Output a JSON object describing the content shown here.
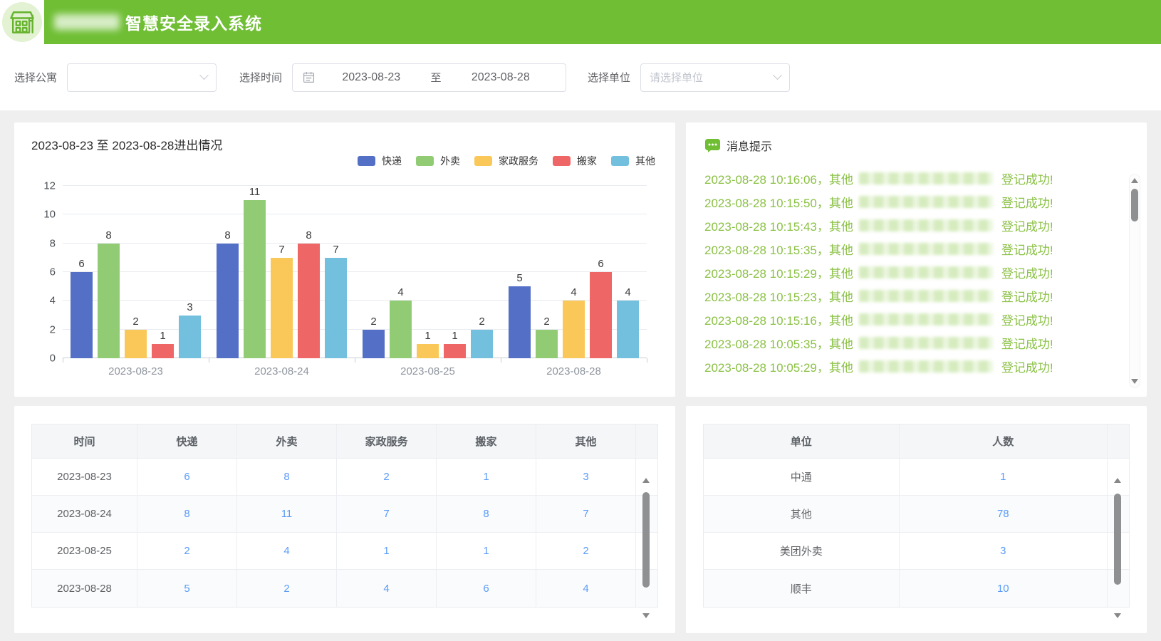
{
  "header": {
    "title": "智慧安全录入系统"
  },
  "filters": {
    "apartment_label": "选择公寓",
    "apartment_value": "",
    "time_label": "选择时间",
    "date_start": "2023-08-23",
    "date_separator": "至",
    "date_end": "2023-08-28",
    "unit_label": "选择单位",
    "unit_placeholder": "请选择单位"
  },
  "chart_data": {
    "type": "bar",
    "title": "2023-08-23 至 2023-08-28进出情况",
    "categories": [
      "2023-08-23",
      "2023-08-24",
      "2023-08-25",
      "2023-08-28"
    ],
    "series": [
      {
        "name": "快递",
        "color": "#5470c6",
        "values": [
          6,
          8,
          2,
          5
        ]
      },
      {
        "name": "外卖",
        "color": "#91cc75",
        "values": [
          8,
          11,
          4,
          2
        ]
      },
      {
        "name": "家政服务",
        "color": "#fac858",
        "values": [
          2,
          7,
          1,
          4
        ]
      },
      {
        "name": "搬家",
        "color": "#ee6666",
        "values": [
          1,
          8,
          1,
          6
        ]
      },
      {
        "name": "其他",
        "color": "#73c0de",
        "values": [
          3,
          7,
          2,
          4
        ]
      }
    ],
    "ylim": [
      0,
      12
    ],
    "yticks": [
      0,
      2,
      4,
      6,
      8,
      10,
      12
    ],
    "xlabel": "",
    "ylabel": "",
    "grid": true,
    "legend_position": "top-right"
  },
  "messages": {
    "title": "消息提示",
    "items": [
      {
        "time": "2023-08-28 10:16:06",
        "type": "其他",
        "status": "登记成功!"
      },
      {
        "time": "2023-08-28 10:15:50",
        "type": "其他",
        "status": "登记成功!"
      },
      {
        "time": "2023-08-28 10:15:43",
        "type": "其他",
        "status": "登记成功!"
      },
      {
        "time": "2023-08-28 10:15:35",
        "type": "其他",
        "status": "登记成功!"
      },
      {
        "time": "2023-08-28 10:15:29",
        "type": "其他",
        "status": "登记成功!"
      },
      {
        "time": "2023-08-28 10:15:23",
        "type": "其他",
        "status": "登记成功!"
      },
      {
        "time": "2023-08-28 10:15:16",
        "type": "其他",
        "status": "登记成功!"
      },
      {
        "time": "2023-08-28 10:05:35",
        "type": "其他",
        "status": "登记成功!"
      },
      {
        "time": "2023-08-28 10:05:29",
        "type": "其他",
        "status": "登记成功!"
      }
    ]
  },
  "entries_table": {
    "headers": [
      "时间",
      "快递",
      "外卖",
      "家政服务",
      "搬家",
      "其他"
    ],
    "rows": [
      [
        "2023-08-23",
        "6",
        "8",
        "2",
        "1",
        "3"
      ],
      [
        "2023-08-24",
        "8",
        "11",
        "7",
        "8",
        "7"
      ],
      [
        "2023-08-25",
        "2",
        "4",
        "1",
        "1",
        "2"
      ],
      [
        "2023-08-28",
        "5",
        "2",
        "4",
        "6",
        "4"
      ]
    ]
  },
  "units_table": {
    "headers": [
      "单位",
      "人数"
    ],
    "rows": [
      [
        "中通",
        "1"
      ],
      [
        "其他",
        "78"
      ],
      [
        "美团外卖",
        "3"
      ],
      [
        "顺丰",
        "10"
      ]
    ]
  },
  "colors": {
    "brand_green": "#6fbe34",
    "message_green": "#8ac144",
    "link_blue": "#5b9cf8",
    "series_palette": [
      "#5470c6",
      "#91cc75",
      "#fac858",
      "#ee6666",
      "#73c0de"
    ]
  },
  "icons": {
    "logo": "building-icon",
    "date": "calendar-icon",
    "dropdown": "chevron-down-icon",
    "messages": "chat-bubble-icon"
  }
}
